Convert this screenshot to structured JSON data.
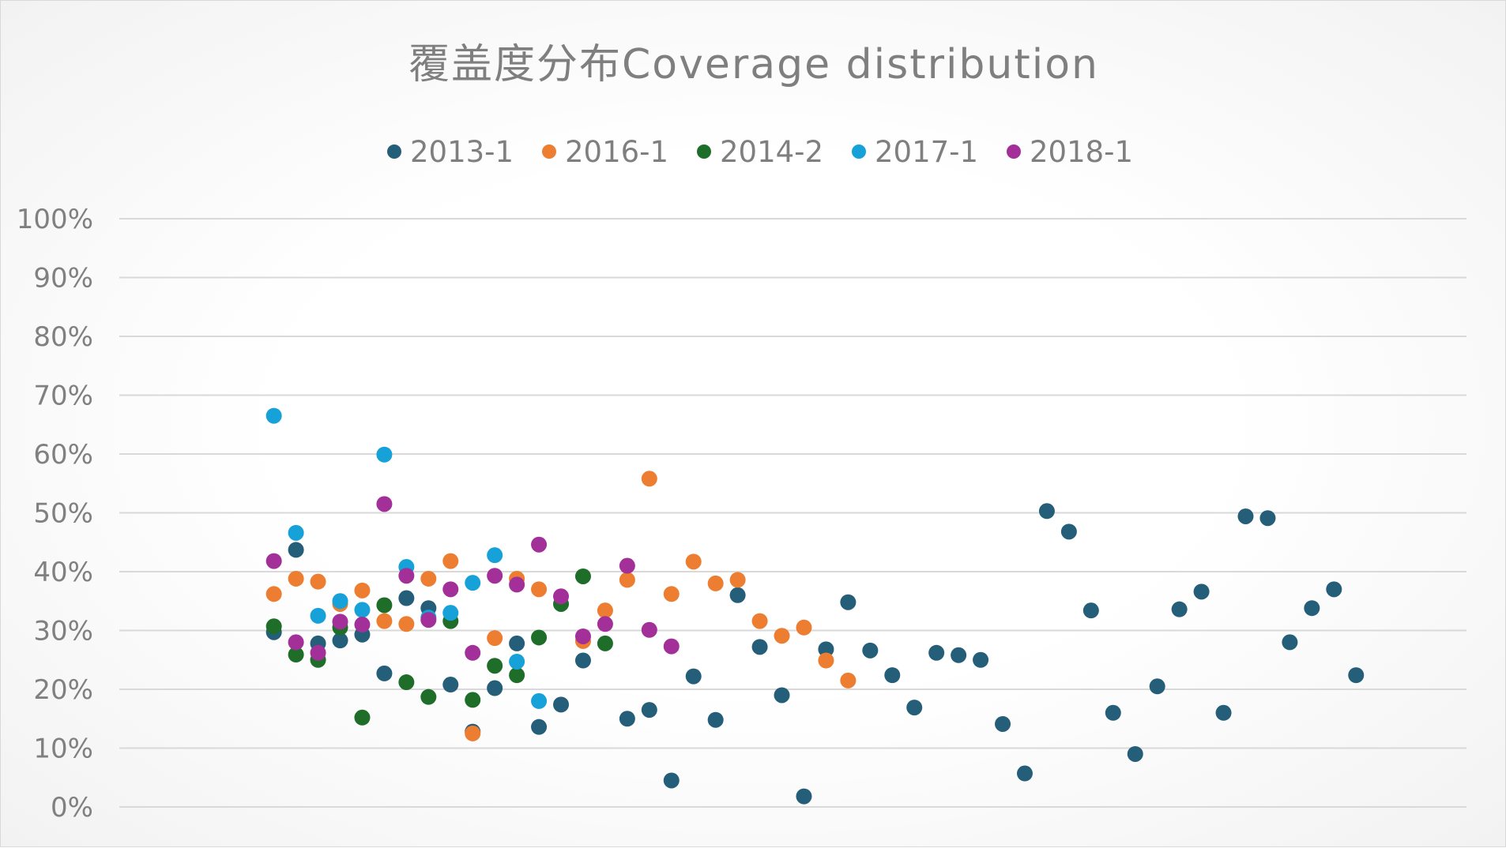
{
  "chart_data": {
    "type": "scatter",
    "title": "覆盖度分布Coverage distribution",
    "xlabel": "",
    "ylabel": "",
    "ylim": [
      0,
      1
    ],
    "xlim": [
      0,
      61
    ],
    "y_ticks": [
      {
        "value": 0.0,
        "label": "0%"
      },
      {
        "value": 0.1,
        "label": "10%"
      },
      {
        "value": 0.2,
        "label": "20%"
      },
      {
        "value": 0.3,
        "label": "30%"
      },
      {
        "value": 0.4,
        "label": "40%"
      },
      {
        "value": 0.5,
        "label": "50%"
      },
      {
        "value": 0.6,
        "label": "60%"
      },
      {
        "value": 0.7,
        "label": "70%"
      },
      {
        "value": 0.8,
        "label": "80%"
      },
      {
        "value": 0.9,
        "label": "90%"
      },
      {
        "value": 1.0,
        "label": "100%"
      }
    ],
    "grid": true,
    "legend_position": "top",
    "series": [
      {
        "name": "2013-1",
        "color": "#255e79",
        "points": [
          {
            "x": 7,
            "y": 0.297
          },
          {
            "x": 8,
            "y": 0.437
          },
          {
            "x": 9,
            "y": 0.278
          },
          {
            "x": 10,
            "y": 0.283
          },
          {
            "x": 11,
            "y": 0.293
          },
          {
            "x": 12,
            "y": 0.227
          },
          {
            "x": 13,
            "y": 0.355
          },
          {
            "x": 14,
            "y": 0.338
          },
          {
            "x": 15,
            "y": 0.208
          },
          {
            "x": 16,
            "y": 0.128
          },
          {
            "x": 17,
            "y": 0.202
          },
          {
            "x": 18,
            "y": 0.278
          },
          {
            "x": 19,
            "y": 0.136
          },
          {
            "x": 20,
            "y": 0.174
          },
          {
            "x": 21,
            "y": 0.249
          },
          {
            "x": 23,
            "y": 0.15
          },
          {
            "x": 24,
            "y": 0.165
          },
          {
            "x": 25,
            "y": 0.045
          },
          {
            "x": 26,
            "y": 0.222
          },
          {
            "x": 27,
            "y": 0.148
          },
          {
            "x": 28,
            "y": 0.36
          },
          {
            "x": 29,
            "y": 0.272
          },
          {
            "x": 30,
            "y": 0.19
          },
          {
            "x": 31,
            "y": 0.018
          },
          {
            "x": 32,
            "y": 0.268
          },
          {
            "x": 33,
            "y": 0.348
          },
          {
            "x": 34,
            "y": 0.266
          },
          {
            "x": 35,
            "y": 0.224
          },
          {
            "x": 36,
            "y": 0.169
          },
          {
            "x": 37,
            "y": 0.262
          },
          {
            "x": 38,
            "y": 0.258
          },
          {
            "x": 39,
            "y": 0.25
          },
          {
            "x": 40,
            "y": 0.141
          },
          {
            "x": 41,
            "y": 0.057
          },
          {
            "x": 42,
            "y": 0.503
          },
          {
            "x": 43,
            "y": 0.468
          },
          {
            "x": 44,
            "y": 0.334
          },
          {
            "x": 45,
            "y": 0.16
          },
          {
            "x": 46,
            "y": 0.09
          },
          {
            "x": 47,
            "y": 0.205
          },
          {
            "x": 48,
            "y": 0.336
          },
          {
            "x": 49,
            "y": 0.366
          },
          {
            "x": 50,
            "y": 0.16
          },
          {
            "x": 51,
            "y": 0.494
          },
          {
            "x": 52,
            "y": 0.491
          },
          {
            "x": 53,
            "y": 0.28
          },
          {
            "x": 54,
            "y": 0.338
          },
          {
            "x": 55,
            "y": 0.37
          },
          {
            "x": 56,
            "y": 0.224
          }
        ]
      },
      {
        "name": "2016-1",
        "color": "#ed7d31",
        "points": [
          {
            "x": 7,
            "y": 0.362
          },
          {
            "x": 8,
            "y": 0.388
          },
          {
            "x": 9,
            "y": 0.383
          },
          {
            "x": 10,
            "y": 0.345
          },
          {
            "x": 11,
            "y": 0.368
          },
          {
            "x": 12,
            "y": 0.316
          },
          {
            "x": 13,
            "y": 0.311
          },
          {
            "x": 14,
            "y": 0.388
          },
          {
            "x": 15,
            "y": 0.418
          },
          {
            "x": 16,
            "y": 0.125
          },
          {
            "x": 17,
            "y": 0.287
          },
          {
            "x": 18,
            "y": 0.388
          },
          {
            "x": 19,
            "y": 0.37
          },
          {
            "x": 21,
            "y": 0.282
          },
          {
            "x": 22,
            "y": 0.334
          },
          {
            "x": 23,
            "y": 0.386
          },
          {
            "x": 24,
            "y": 0.558
          },
          {
            "x": 25,
            "y": 0.362
          },
          {
            "x": 26,
            "y": 0.417
          },
          {
            "x": 27,
            "y": 0.38
          },
          {
            "x": 28,
            "y": 0.386
          },
          {
            "x": 29,
            "y": 0.316
          },
          {
            "x": 30,
            "y": 0.291
          },
          {
            "x": 31,
            "y": 0.305
          },
          {
            "x": 32,
            "y": 0.249
          },
          {
            "x": 33,
            "y": 0.215
          }
        ]
      },
      {
        "name": "2014-2",
        "color": "#1e6e2a",
        "points": [
          {
            "x": 7,
            "y": 0.307
          },
          {
            "x": 8,
            "y": 0.259
          },
          {
            "x": 9,
            "y": 0.25
          },
          {
            "x": 10,
            "y": 0.305
          },
          {
            "x": 11,
            "y": 0.152
          },
          {
            "x": 12,
            "y": 0.343
          },
          {
            "x": 13,
            "y": 0.212
          },
          {
            "x": 14,
            "y": 0.187
          },
          {
            "x": 15,
            "y": 0.316
          },
          {
            "x": 16,
            "y": 0.182
          },
          {
            "x": 17,
            "y": 0.24
          },
          {
            "x": 18,
            "y": 0.224
          },
          {
            "x": 19,
            "y": 0.288
          },
          {
            "x": 20,
            "y": 0.345
          },
          {
            "x": 21,
            "y": 0.392
          },
          {
            "x": 22,
            "y": 0.278
          }
        ]
      },
      {
        "name": "2017-1",
        "color": "#16a2d8",
        "points": [
          {
            "x": 7,
            "y": 0.665
          },
          {
            "x": 8,
            "y": 0.466
          },
          {
            "x": 9,
            "y": 0.325
          },
          {
            "x": 10,
            "y": 0.35
          },
          {
            "x": 11,
            "y": 0.335
          },
          {
            "x": 12,
            "y": 0.599
          },
          {
            "x": 13,
            "y": 0.408
          },
          {
            "x": 14,
            "y": 0.322
          },
          {
            "x": 15,
            "y": 0.33
          },
          {
            "x": 16,
            "y": 0.381
          },
          {
            "x": 17,
            "y": 0.428
          },
          {
            "x": 18,
            "y": 0.247
          },
          {
            "x": 19,
            "y": 0.18
          }
        ]
      },
      {
        "name": "2018-1",
        "color": "#a23098",
        "points": [
          {
            "x": 7,
            "y": 0.418
          },
          {
            "x": 8,
            "y": 0.28
          },
          {
            "x": 9,
            "y": 0.262
          },
          {
            "x": 10,
            "y": 0.315
          },
          {
            "x": 11,
            "y": 0.31
          },
          {
            "x": 12,
            "y": 0.515
          },
          {
            "x": 13,
            "y": 0.393
          },
          {
            "x": 14,
            "y": 0.318
          },
          {
            "x": 15,
            "y": 0.37
          },
          {
            "x": 16,
            "y": 0.262
          },
          {
            "x": 17,
            "y": 0.393
          },
          {
            "x": 18,
            "y": 0.378
          },
          {
            "x": 19,
            "y": 0.446
          },
          {
            "x": 20,
            "y": 0.358
          },
          {
            "x": 21,
            "y": 0.29
          },
          {
            "x": 22,
            "y": 0.311
          },
          {
            "x": 23,
            "y": 0.41
          },
          {
            "x": 24,
            "y": 0.301
          },
          {
            "x": 25,
            "y": 0.273
          }
        ]
      }
    ]
  }
}
